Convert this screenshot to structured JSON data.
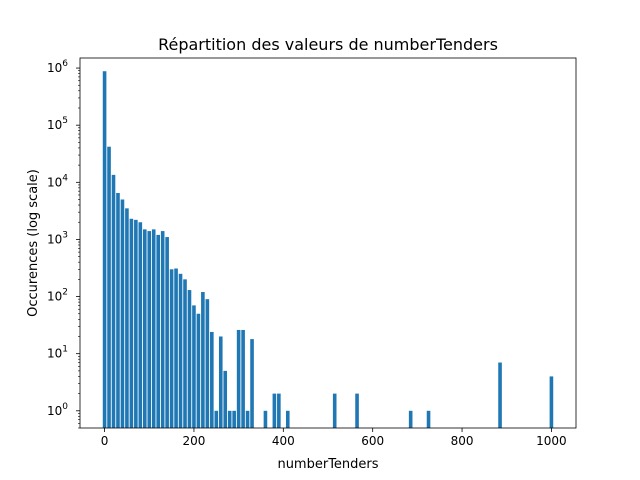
{
  "chart_data": {
    "type": "bar",
    "title": "Répartition des valeurs de numberTenders",
    "xlabel": "numberTenders",
    "ylabel": "Occurences (log scale)",
    "y_scale": "log",
    "xlim": [
      -55,
      1055
    ],
    "ylim": [
      0.5,
      1500000
    ],
    "x_ticks": [
      0,
      200,
      400,
      600,
      800,
      1000
    ],
    "y_ticks": [
      {
        "value": 1,
        "mantissa": "10",
        "exponent": "0"
      },
      {
        "value": 10,
        "mantissa": "10",
        "exponent": "1"
      },
      {
        "value": 100,
        "mantissa": "10",
        "exponent": "2"
      },
      {
        "value": 1000,
        "mantissa": "10",
        "exponent": "3"
      },
      {
        "value": 10000,
        "mantissa": "10",
        "exponent": "4"
      },
      {
        "value": 100000,
        "mantissa": "10",
        "exponent": "5"
      },
      {
        "value": 1000000,
        "mantissa": "10",
        "exponent": "6"
      }
    ],
    "bar_color": "#1f77b4",
    "grid": false,
    "x": [
      0,
      10,
      20,
      30,
      40,
      50,
      60,
      70,
      80,
      90,
      100,
      110,
      120,
      130,
      140,
      150,
      160,
      170,
      180,
      190,
      200,
      210,
      220,
      230,
      240,
      250,
      260,
      270,
      280,
      290,
      300,
      310,
      320,
      330,
      360,
      380,
      390,
      410,
      515,
      565,
      685,
      725,
      885,
      1000
    ],
    "values": [
      880000,
      42000,
      13500,
      6500,
      5000,
      3500,
      2300,
      2200,
      2000,
      1500,
      1400,
      1500,
      1200,
      1400,
      1100,
      300,
      310,
      250,
      200,
      130,
      70,
      50,
      120,
      90,
      24,
      1,
      20,
      5,
      1,
      1,
      26,
      26,
      1,
      18,
      1,
      2,
      2,
      1,
      2,
      2,
      1,
      1,
      7,
      4
    ]
  }
}
